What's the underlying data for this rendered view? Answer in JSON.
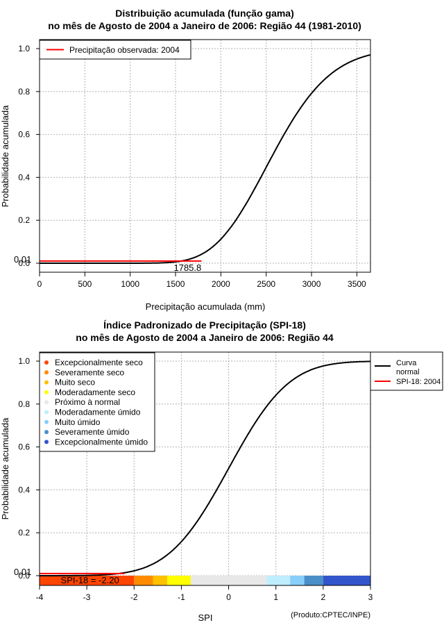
{
  "chart_data": [
    {
      "type": "line",
      "title_line1": "Distribuição acumulada (função gama)",
      "title_line2": "no mês de Agosto de 2004 a Janeiro de 2006: Região 44 (1981-2010)",
      "xlabel": "Precipitação acumulada (mm)",
      "ylabel": "Probabilidade acumulada",
      "xlim": [
        0,
        3650
      ],
      "ylim": [
        0,
        1
      ],
      "x_ticks": [
        0,
        500,
        1000,
        1500,
        2000,
        2500,
        3000,
        3500
      ],
      "y_ticks": [
        0.0,
        0.2,
        0.4,
        0.6,
        0.8,
        1.0
      ],
      "y_tick_labels": [
        "0.0",
        "0.2",
        "0.4",
        "0.6",
        "0.8",
        "1.0"
      ],
      "gamma_shape": 26,
      "gamma_scale": 100,
      "legend": {
        "label": "Precipitação observada: 2004",
        "color": "#ff0000"
      },
      "observed": {
        "value": 1785.8,
        "label": "1785.8",
        "probability": 0.01,
        "probability_label": "0.01"
      },
      "curve_color": "#000000"
    },
    {
      "type": "line",
      "title_line1": "Índice Padronizado de Precipitação (SPI-18)",
      "title_line2": "no mês de Agosto de 2004 a Janeiro de 2006: Região 44",
      "xlabel": "SPI",
      "ylabel": "Probabilidade acumulada",
      "xlim": [
        -4,
        3
      ],
      "ylim": [
        0,
        1
      ],
      "x_ticks": [
        -4,
        -3,
        -2,
        -1,
        0,
        1,
        2,
        3
      ],
      "x_tick_labels": [
        "-4",
        "-3",
        "-2",
        "-1",
        "0",
        "1",
        "2",
        "3"
      ],
      "y_ticks": [
        0.0,
        0.2,
        0.4,
        0.6,
        0.8,
        1.0
      ],
      "y_tick_labels": [
        "0.0",
        "0.2",
        "0.4",
        "0.6",
        "0.8",
        "1.0"
      ],
      "legend_categories": [
        {
          "label": "Excepcionalmente seco",
          "color": "#ff4500",
          "from": -4.0,
          "to": -2.0
        },
        {
          "label": "Severamente seco",
          "color": "#ff8c00",
          "from": -2.0,
          "to": -1.6
        },
        {
          "label": "Muito seco",
          "color": "#ffc000",
          "from": -1.6,
          "to": -1.3
        },
        {
          "label": "Moderadamente seco",
          "color": "#ffff00",
          "from": -1.3,
          "to": -0.8
        },
        {
          "label": "Próximo à normal",
          "color": "#e8e8e8",
          "from": -0.8,
          "to": 0.8
        },
        {
          "label": "Moderadamente úmido",
          "color": "#bfeeff",
          "from": 0.8,
          "to": 1.3
        },
        {
          "label": "Muito úmido",
          "color": "#87cefa",
          "from": 1.3,
          "to": 1.6
        },
        {
          "label": "Severamente úmido",
          "color": "#4a8fc8",
          "from": 1.6,
          "to": 2.0
        },
        {
          "label": "Excepcionalmente úmido",
          "color": "#3355cc",
          "from": 2.0,
          "to": 3.0
        }
      ],
      "curve_legend": [
        {
          "label_line1": "Curva",
          "label_line2": "normal",
          "color": "#000000"
        },
        {
          "label_line1": "SPI-18: 2004",
          "label_line2": "",
          "color": "#ff0000"
        }
      ],
      "observed": {
        "spi": -2.2,
        "label": "SPI-18 = -2.20",
        "probability": 0.01,
        "probability_label": "0.01"
      },
      "credit": "(Produto:CPTEC/INPE)"
    }
  ]
}
